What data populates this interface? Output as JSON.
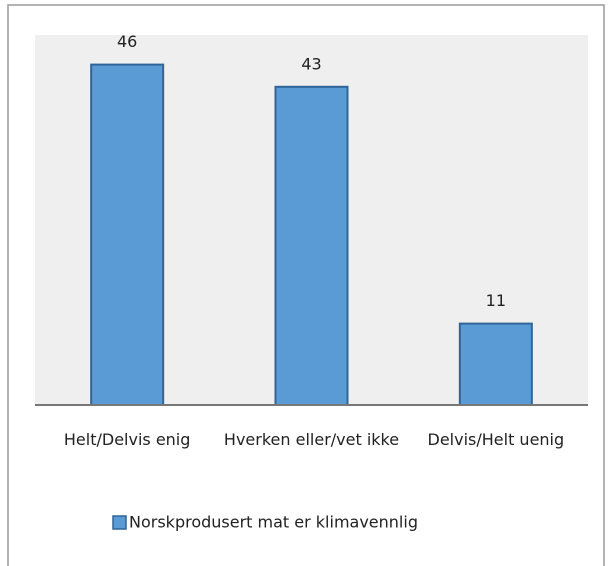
{
  "chart_data": {
    "type": "bar",
    "categories": [
      "Helt/Delvis enig",
      "Hverken eller/vet ikke",
      "Delvis/Helt uenig"
    ],
    "series": [
      {
        "name": "Norskprodusert mat er klimavennlig",
        "color": "#5b9bd5",
        "values": [
          46,
          43,
          11
        ]
      }
    ],
    "ylim": [
      0,
      50
    ],
    "grid": false,
    "legend": "bottom"
  }
}
